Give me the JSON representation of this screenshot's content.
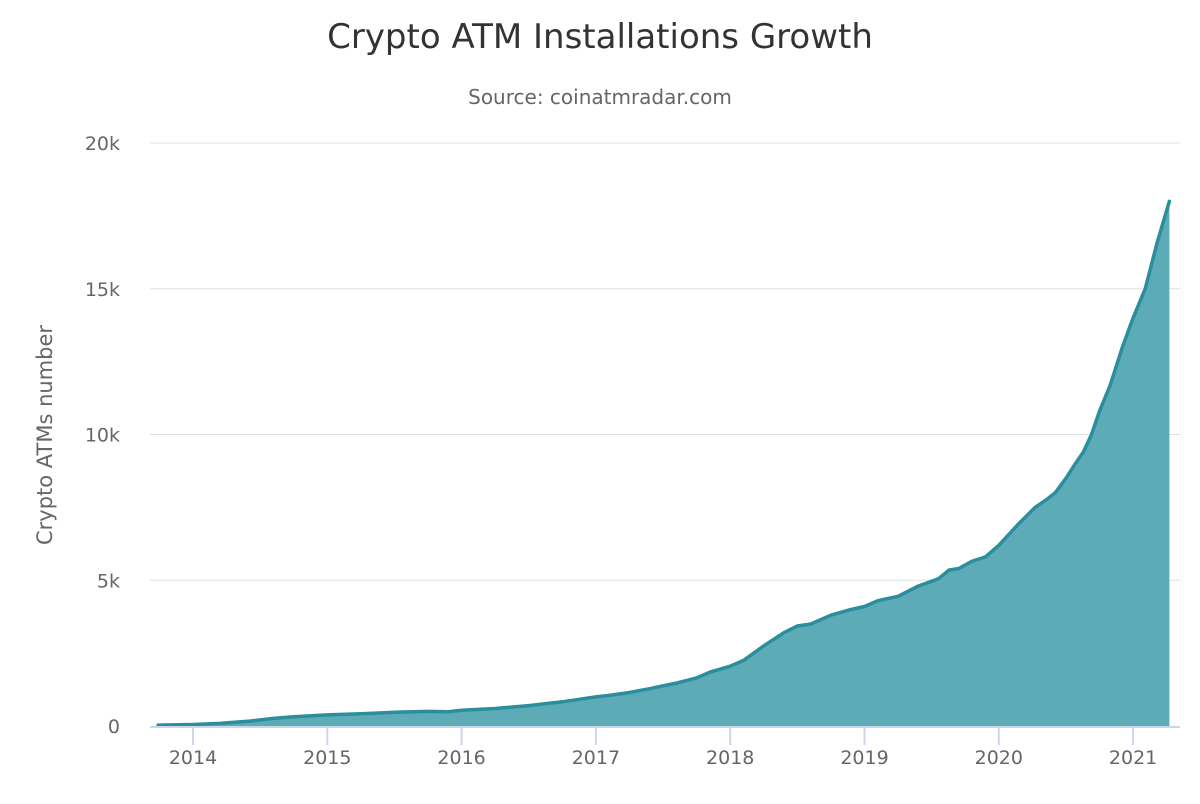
{
  "chart_data": {
    "type": "area",
    "title": "Crypto ATM Installations Growth",
    "subtitle": "Source: coinatmradar.com",
    "xlabel": "",
    "ylabel": "Crypto ATMs number",
    "xlim": [
      2013.6,
      2021.35
    ],
    "ylim": [
      0,
      20000
    ],
    "x_ticks": [
      2014,
      2015,
      2016,
      2017,
      2018,
      2019,
      2020,
      2021
    ],
    "x_tick_labels": [
      "2014",
      "2015",
      "2016",
      "2017",
      "2018",
      "2019",
      "2020",
      "2021"
    ],
    "y_ticks": [
      0,
      5000,
      10000,
      15000,
      20000
    ],
    "y_tick_labels": [
      "0",
      "5k",
      "10k",
      "15k",
      "20k"
    ],
    "grid": true,
    "legend": "none",
    "colors": {
      "line": "#2a8e9c",
      "fill": "#5eabb8",
      "grid": "#e0e0e0",
      "axis": "#ccd6eb"
    },
    "series": [
      {
        "name": "Crypto ATMs",
        "x": [
          2013.74,
          2014.0,
          2014.2,
          2014.43,
          2014.6,
          2014.75,
          2015.0,
          2015.25,
          2015.5,
          2015.75,
          2015.9,
          2016.0,
          2016.25,
          2016.5,
          2016.75,
          2017.0,
          2017.1,
          2017.25,
          2017.4,
          2017.5,
          2017.6,
          2017.75,
          2017.85,
          2018.0,
          2018.1,
          2018.25,
          2018.4,
          2018.5,
          2018.6,
          2018.75,
          2018.9,
          2019.0,
          2019.1,
          2019.25,
          2019.4,
          2019.55,
          2019.63,
          2019.7,
          2019.8,
          2019.9,
          2020.0,
          2020.14,
          2020.27,
          2020.35,
          2020.42,
          2020.5,
          2020.57,
          2020.63,
          2020.69,
          2020.75,
          2020.83,
          2020.92,
          2021.0,
          2021.09,
          2021.18,
          2021.27
        ],
        "values": [
          30,
          50,
          90,
          170,
          260,
          320,
          380,
          420,
          470,
          500,
          490,
          540,
          600,
          700,
          830,
          1000,
          1050,
          1150,
          1280,
          1380,
          1470,
          1650,
          1850,
          2050,
          2250,
          2750,
          3200,
          3430,
          3500,
          3800,
          4000,
          4100,
          4300,
          4450,
          4800,
          5050,
          5350,
          5400,
          5650,
          5800,
          6200,
          6900,
          7500,
          7750,
          8000,
          8500,
          9000,
          9400,
          10000,
          10800,
          11700,
          13000,
          14000,
          15000,
          16600,
          18000
        ]
      }
    ]
  }
}
